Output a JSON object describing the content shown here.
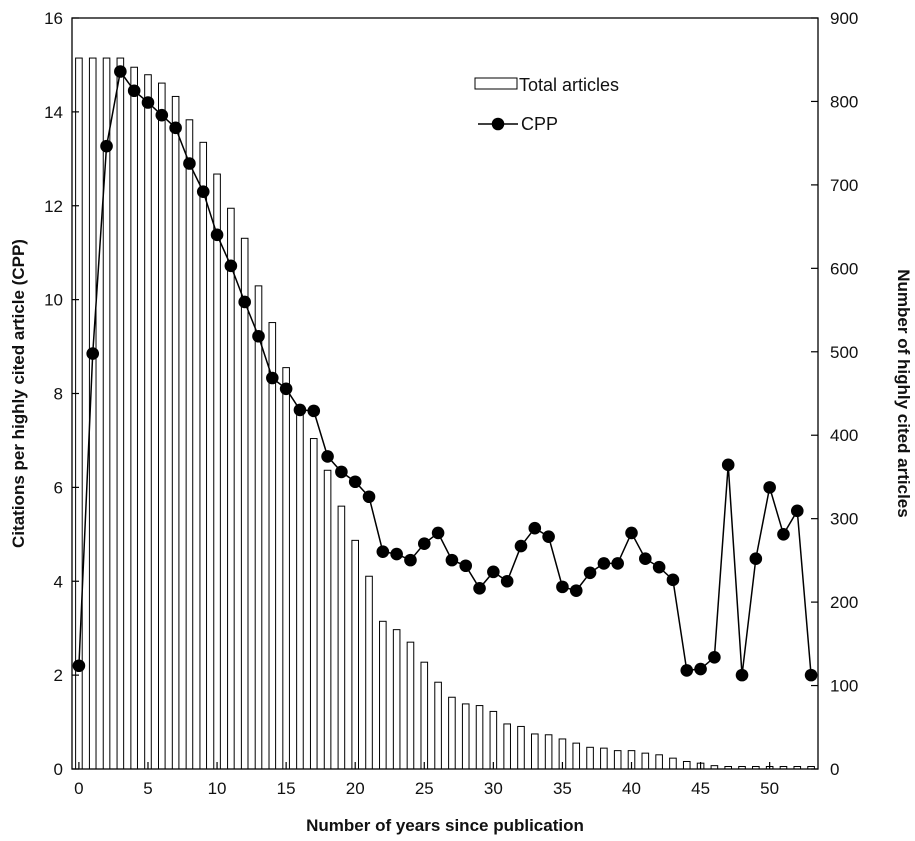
{
  "chart_data": {
    "type": "bar+line",
    "title": "",
    "xlabel": "Number of years since publication",
    "ylabel_left": "Citations per highly cited article (CPP)",
    "ylabel_right": "Number of highly cited articles",
    "xlim": [
      -0.5,
      53.5
    ],
    "ylim_left": [
      0,
      16
    ],
    "ylim_right": [
      0,
      900
    ],
    "x_ticks": [
      0,
      5,
      10,
      15,
      20,
      25,
      30,
      35,
      40,
      45,
      50
    ],
    "y_ticks_left": [
      0,
      2,
      4,
      6,
      8,
      10,
      12,
      14,
      16
    ],
    "y_ticks_right": [
      0,
      100,
      200,
      300,
      400,
      500,
      600,
      700,
      800,
      900
    ],
    "grid": false,
    "legend_position": "top-right",
    "x": [
      0,
      1,
      2,
      3,
      4,
      5,
      6,
      7,
      8,
      9,
      10,
      11,
      12,
      13,
      14,
      15,
      16,
      17,
      18,
      19,
      20,
      21,
      22,
      23,
      24,
      25,
      26,
      27,
      28,
      29,
      30,
      31,
      32,
      33,
      34,
      35,
      36,
      37,
      38,
      39,
      40,
      41,
      42,
      43,
      44,
      45,
      46,
      47,
      48,
      49,
      50,
      51,
      52,
      53
    ],
    "series": [
      {
        "name": "Total articles",
        "type": "bar",
        "axis": "right",
        "values": [
          852,
          852,
          852,
          852,
          841,
          832,
          822,
          806,
          778,
          751,
          713,
          672,
          636,
          579,
          535,
          481,
          433,
          396,
          358,
          315,
          274,
          231,
          177,
          167,
          152,
          128,
          104,
          86,
          78,
          76,
          69,
          54,
          51,
          42,
          41,
          36,
          31,
          26,
          25,
          22,
          22,
          19,
          17,
          13,
          9,
          7,
          4,
          3,
          3,
          3,
          3,
          3,
          3,
          3
        ]
      },
      {
        "name": "CPP",
        "type": "line",
        "axis": "left",
        "values": [
          2.2,
          8.85,
          13.27,
          14.86,
          14.45,
          14.2,
          13.93,
          13.66,
          12.9,
          12.3,
          11.38,
          10.72,
          9.95,
          9.22,
          8.33,
          8.1,
          7.65,
          7.63,
          6.66,
          6.33,
          6.12,
          5.8,
          4.63,
          4.58,
          4.45,
          4.8,
          5.03,
          4.45,
          4.33,
          3.85,
          4.2,
          4.0,
          4.75,
          5.13,
          4.95,
          3.88,
          3.8,
          4.18,
          4.38,
          4.38,
          5.03,
          4.48,
          4.3,
          4.03,
          2.1,
          2.13,
          2.38,
          6.48,
          2.0,
          4.48,
          6.0,
          5.0,
          5.5,
          2.0
        ]
      }
    ]
  }
}
